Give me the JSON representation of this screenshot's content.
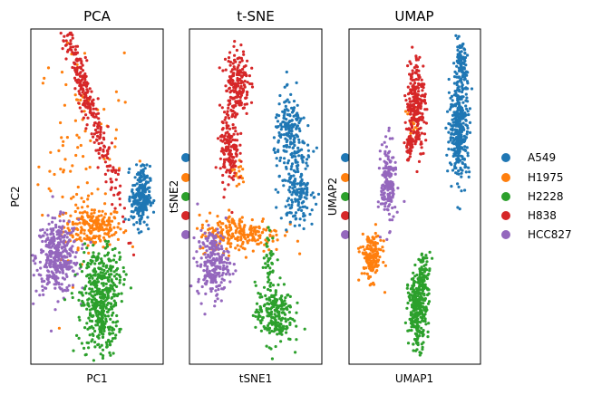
{
  "colors": {
    "A549": "#1f77b4",
    "H1975": "#ff7f0e",
    "H2228": "#2ca02c",
    "H838": "#d62728",
    "HCC827": "#9467bd"
  },
  "legend": [
    "A549",
    "H1975",
    "H2228",
    "H838",
    "HCC827"
  ],
  "chart_data": [
    {
      "type": "scatter",
      "title": "PCA",
      "xlabel": "PC1",
      "ylabel": "PC2",
      "xlim": [
        0,
        100
      ],
      "ylim": [
        0,
        100
      ],
      "grid": false,
      "series": [
        {
          "name": "A549",
          "clusters": [
            {
              "x": 83,
              "y": 50,
              "sx": 3.5,
              "sy": 4.5,
              "n": 240,
              "rot": 0
            }
          ]
        },
        {
          "name": "H1975",
          "clusters": [
            {
              "x": 47,
              "y": 41,
              "sx": 11,
              "sy": 3,
              "n": 200,
              "rot": 0
            },
            {
              "x": 38,
              "y": 65,
              "sx": 16,
              "sy": 16,
              "n": 100,
              "rot": 0
            }
          ]
        },
        {
          "name": "H2228",
          "clusters": [
            {
              "x": 52,
              "y": 18,
              "sx": 7,
              "sy": 8,
              "n": 420,
              "rot": 0
            },
            {
              "x": 60,
              "y": 27,
              "sx": 6,
              "sy": 4,
              "n": 60,
              "rot": 0
            }
          ]
        },
        {
          "name": "H838",
          "clusters": [
            {
              "x": 42,
              "y": 80,
              "sx": 20,
              "sy": 2.5,
              "n": 300,
              "rot": -52
            }
          ]
        },
        {
          "name": "HCC827",
          "clusters": [
            {
              "x": 20,
              "y": 32,
              "sx": 8,
              "sy": 5.5,
              "n": 360,
              "rot": 0
            }
          ]
        }
      ]
    },
    {
      "type": "scatter",
      "title": "t-SNE",
      "xlabel": "tSNE1",
      "ylabel": "tSNE2",
      "xlim": [
        0,
        100
      ],
      "ylim": [
        0,
        100
      ],
      "grid": false,
      "series": [
        {
          "name": "A549",
          "clusters": [
            {
              "x": 76,
              "y": 69,
              "sx": 6,
              "sy": 5.5,
              "n": 170,
              "rot": 0
            },
            {
              "x": 82,
              "y": 53,
              "sx": 6,
              "sy": 5.5,
              "n": 170,
              "rot": 0
            }
          ]
        },
        {
          "name": "H1975",
          "clusters": [
            {
              "x": 38,
              "y": 39,
              "sx": 16,
              "sy": 2.8,
              "n": 230,
              "rot": 0
            },
            {
              "x": 36,
              "y": 57,
              "sx": 3,
              "sy": 2.5,
              "n": 18,
              "rot": 0
            }
          ]
        },
        {
          "name": "H2228",
          "clusters": [
            {
              "x": 64,
              "y": 15,
              "sx": 7,
              "sy": 4.5,
              "n": 220,
              "rot": 0
            },
            {
              "x": 60,
              "y": 31,
              "sx": 2,
              "sy": 4.5,
              "n": 40,
              "rot": 0
            }
          ]
        },
        {
          "name": "H838",
          "clusters": [
            {
              "x": 36,
              "y": 84,
              "sx": 4.5,
              "sy": 5,
              "n": 190,
              "rot": 0
            },
            {
              "x": 30,
              "y": 64,
              "sx": 3.5,
              "sy": 6,
              "n": 150,
              "rot": 0
            }
          ]
        },
        {
          "name": "HCC827",
          "clusters": [
            {
              "x": 18,
              "y": 30,
              "sx": 6,
              "sy": 5,
              "n": 230,
              "rot": 0
            }
          ]
        }
      ]
    },
    {
      "type": "scatter",
      "title": "UMAP",
      "xlabel": "UMAP1",
      "ylabel": "UMAP2",
      "xlim": [
        0,
        100
      ],
      "ylim": [
        0,
        100
      ],
      "grid": false,
      "series": [
        {
          "name": "A549",
          "clusters": [
            {
              "x": 85,
              "y": 88,
              "sx": 2.5,
              "sy": 3.5,
              "n": 110,
              "rot": 0
            },
            {
              "x": 84,
              "y": 70,
              "sx": 3.8,
              "sy": 7,
              "n": 330,
              "rot": 0
            }
          ]
        },
        {
          "name": "H1975",
          "clusters": [
            {
              "x": 17,
              "y": 32,
              "sx": 4,
              "sy": 3.5,
              "n": 160,
              "rot": 0
            },
            {
              "x": 48,
              "y": 71,
              "sx": 3,
              "sy": 3,
              "n": 22,
              "rot": 0
            }
          ]
        },
        {
          "name": "H2228",
          "clusters": [
            {
              "x": 52,
              "y": 16,
              "sx": 3.5,
              "sy": 5.5,
              "n": 260,
              "rot": 0
            },
            {
              "x": 57,
              "y": 26,
              "sx": 2.5,
              "sy": 4,
              "n": 80,
              "rot": 0
            }
          ]
        },
        {
          "name": "H838",
          "clusters": [
            {
              "x": 51,
              "y": 78,
              "sx": 3.5,
              "sy": 7,
              "n": 240,
              "rot": 0
            },
            {
              "x": 46,
              "y": 65,
              "sx": 2,
              "sy": 2,
              "n": 40,
              "rot": 0
            }
          ]
        },
        {
          "name": "HCC827",
          "clusters": [
            {
              "x": 30,
              "y": 54,
              "sx": 2.8,
              "sy": 6,
              "n": 170,
              "rot": 0
            }
          ]
        }
      ]
    }
  ]
}
